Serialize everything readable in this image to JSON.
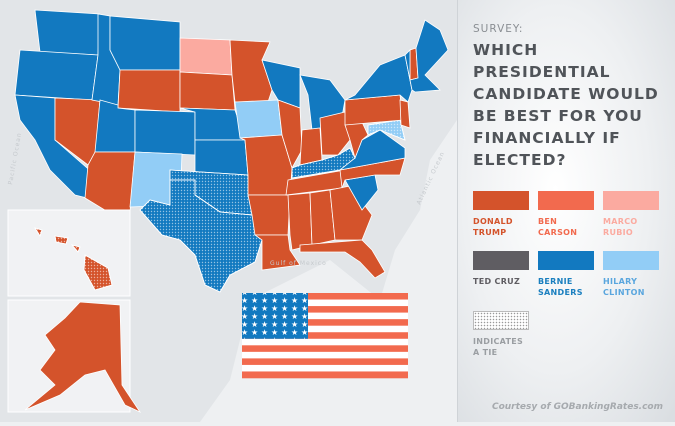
{
  "panel": {
    "kicker": "SURVEY:",
    "question": "WHICH PRESIDENTIAL CANDIDATE WOULD BE BEST FOR YOU FINANCIALLY IF ELECTED?",
    "credit": "Courtesy of GOBankingRates.com"
  },
  "legend": [
    {
      "key": "trump",
      "label": "DONALD TRUMP",
      "color": "#d4532b"
    },
    {
      "key": "carson",
      "label": "BEN CARSON",
      "color": "#f26a4e"
    },
    {
      "key": "rubio",
      "label": "MARCO RUBIO",
      "color": "#fbaaa0"
    },
    {
      "key": "cruz",
      "label": "TED CRUZ",
      "color": "#5f5d62"
    },
    {
      "key": "sanders",
      "label": "BERNIE SANDERS",
      "color": "#1279c0"
    },
    {
      "key": "clinton",
      "label": "HILARY CLINTON",
      "color": "#92cdf6"
    },
    {
      "key": "tie",
      "label": "INDICATES A TIE",
      "color": "#ffffff"
    }
  ],
  "map": {
    "labels": {
      "gulf": "Gulf of Mexico",
      "atlantic": "Atlantic Ocean",
      "pacific": "Pacific Ocean"
    },
    "states": {
      "WA": "sanders",
      "OR": "sanders",
      "CA": "sanders",
      "NV": "trump",
      "ID": "sanders",
      "MT": "sanders",
      "WY": "trump",
      "UT": "sanders",
      "AZ": "trump",
      "CO": "sanders",
      "NM": "clinton",
      "ND": "rubio",
      "SD": "trump",
      "NE": "sanders",
      "KS": "sanders",
      "OK": "sanders-tie",
      "TX": "sanders-tie",
      "MN": "trump",
      "IA": "clinton",
      "MO": "trump",
      "AR": "trump",
      "LA": "trump",
      "WI": "sanders",
      "IL": "trump",
      "MI": "sanders",
      "IN": "trump",
      "OH": "trump",
      "KY": "sanders-tie",
      "TN": "trump",
      "MS": "trump",
      "AL": "trump",
      "GA": "trump",
      "FL": "trump",
      "SC": "sanders",
      "NC": "trump",
      "VA": "sanders",
      "WV": "trump",
      "PA": "trump",
      "NY": "sanders",
      "NJ": "trump",
      "NE_ENG": "sanders",
      "NH": "trump",
      "MD": "clinton-tie",
      "AK": "trump",
      "HI": "trump-tie"
    }
  }
}
